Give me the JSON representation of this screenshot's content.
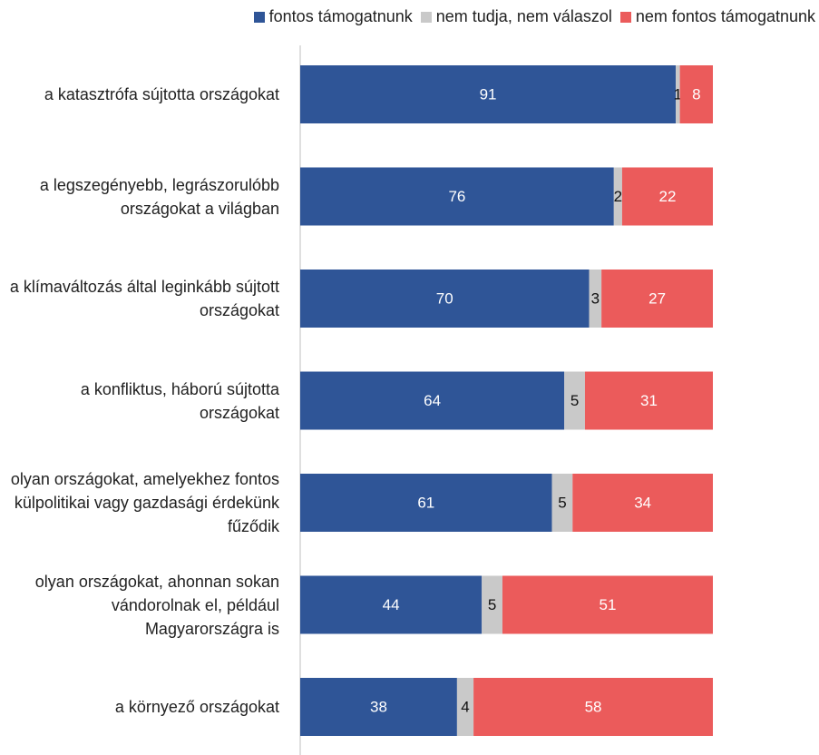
{
  "chart_data": {
    "type": "stacked_bar_horizontal",
    "categories": [
      "a katasztrófa sújtotta országokat",
      "a legszegényebb, legrászorulóbb országokat a világban",
      "a klímaváltozás által leginkább sújtott országokat",
      "a konfliktus, háború sújtotta országokat",
      "olyan országokat, amelyekhez fontos külpolitikai vagy gazdasági érdekünk fűződik",
      "olyan országokat, ahonnan sokan vándorolnak el, például Magyarországra is",
      "a környező országokat"
    ],
    "series": [
      {
        "name": "fontos támogatnunk",
        "color": "#2f5597",
        "values": [
          91,
          76,
          70,
          64,
          61,
          44,
          38
        ]
      },
      {
        "name": "nem tudja, nem válaszol",
        "color": "#c9c9c9",
        "values": [
          1,
          2,
          3,
          5,
          5,
          5,
          4
        ]
      },
      {
        "name": "nem fontos támogatnunk",
        "color": "#eb5b5b",
        "values": [
          8,
          22,
          27,
          31,
          34,
          51,
          58
        ]
      }
    ],
    "xlim": [
      0,
      100
    ],
    "legend": "top"
  }
}
